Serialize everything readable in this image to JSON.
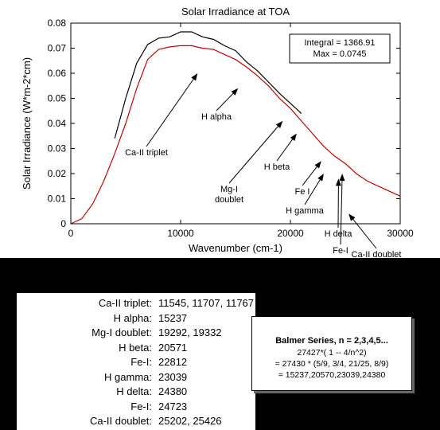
{
  "chart_data": {
    "type": "line",
    "title": "Solar Irradiance at TOA",
    "xlabel": "Wavenumber (cm-1)",
    "ylabel": "Solar Irradiance (W*m-2*cm)",
    "xlim": [
      0,
      30000
    ],
    "ylim": [
      0,
      0.08
    ],
    "x_ticks": [
      0,
      10000,
      20000,
      30000
    ],
    "x_tick_labels": [
      "0",
      "10000",
      "20000",
      "30000"
    ],
    "y_ticks": [
      0,
      0.01,
      0.02,
      0.03,
      0.04,
      0.05,
      0.06,
      0.07,
      0.08
    ],
    "y_tick_labels": [
      "0",
      "0.01",
      "0.02",
      "0.03",
      "0.04",
      "0.05",
      "0.06",
      "0.07",
      "0.08"
    ],
    "grid": false,
    "series": [
      {
        "color": "#000000",
        "x": [
          4000,
          5000,
          6000,
          7000,
          8000,
          9000,
          10000,
          11000,
          12000,
          13000,
          14000,
          15000,
          16000,
          17000,
          18000,
          19000,
          20000,
          21000
        ],
        "y": [
          0.034,
          0.05,
          0.064,
          0.0715,
          0.074,
          0.0745,
          0.0765,
          0.0765,
          0.0745,
          0.0735,
          0.071,
          0.069,
          0.0645,
          0.061,
          0.0565,
          0.052,
          0.048,
          0.044
        ]
      },
      {
        "color": "#cc0000",
        "x": [
          0,
          1000,
          2000,
          3000,
          4000,
          5000,
          6000,
          7000,
          8000,
          9000,
          10000,
          11000,
          12000,
          13000,
          14000,
          15000,
          16000,
          17000,
          18000,
          19000,
          20000,
          21000,
          22000,
          23000,
          24000,
          25000,
          26000,
          27000,
          28000,
          29000,
          30000
        ],
        "y": [
          0,
          0.002,
          0.008,
          0.017,
          0.028,
          0.04,
          0.054,
          0.0655,
          0.0695,
          0.0705,
          0.071,
          0.071,
          0.07,
          0.0695,
          0.0675,
          0.0655,
          0.0625,
          0.059,
          0.055,
          0.05,
          0.046,
          0.041,
          0.036,
          0.031,
          0.027,
          0.024,
          0.02,
          0.017,
          0.015,
          0.013,
          0.011
        ]
      }
    ],
    "annotations": [
      {
        "label": "Ca-II triplet",
        "target_x": 11545,
        "target_y": 0.06
      },
      {
        "label": "H alpha",
        "target_x": 15237,
        "target_y": 0.054
      },
      {
        "label": "Mg-I\ndoublet",
        "target_x": 19300,
        "target_y": 0.041
      },
      {
        "label": "H beta",
        "target_x": 20571,
        "target_y": 0.036
      },
      {
        "label": "Fe I",
        "target_x": 22812,
        "target_y": 0.025
      },
      {
        "label": "H gamma",
        "target_x": 23039,
        "target_y": 0.02
      },
      {
        "label": "H delta",
        "target_x": 24380,
        "target_y": 0.018
      },
      {
        "label": "Fe-I",
        "target_x": 24723,
        "target_y": 0.02
      },
      {
        "label": "Ca-II doublet",
        "target_x": 25300,
        "target_y": 0.004
      }
    ],
    "info_box": {
      "line1": "Integral =  1366.91",
      "line2": "Max = 0.0745"
    }
  },
  "line_table": [
    {
      "name": "Ca-II triplet:",
      "values": "11545, 11707, 11767"
    },
    {
      "name": "H alpha:",
      "values": "15237"
    },
    {
      "name": "Mg-I doublet:",
      "values": "19292, 19332"
    },
    {
      "name": "H beta:",
      "values": "20571"
    },
    {
      "name": "Fe-I:",
      "values": "22812"
    },
    {
      "name": "H gamma:",
      "values": "23039"
    },
    {
      "name": "H delta:",
      "values": "24380"
    },
    {
      "name": "Fe-I:",
      "values": "24723"
    },
    {
      "name": "Ca-II doublet:",
      "values": "25202, 25426"
    }
  ],
  "balmer": {
    "title": "Balmer  Series, n = 2,3,4,5...",
    "line1": "27427*( 1 -- 4/n^2)",
    "line2": "= 27430 * (5/9, 3/4, 21/25, 8/9)",
    "line3": "=  15237,20570,23039,24380"
  }
}
